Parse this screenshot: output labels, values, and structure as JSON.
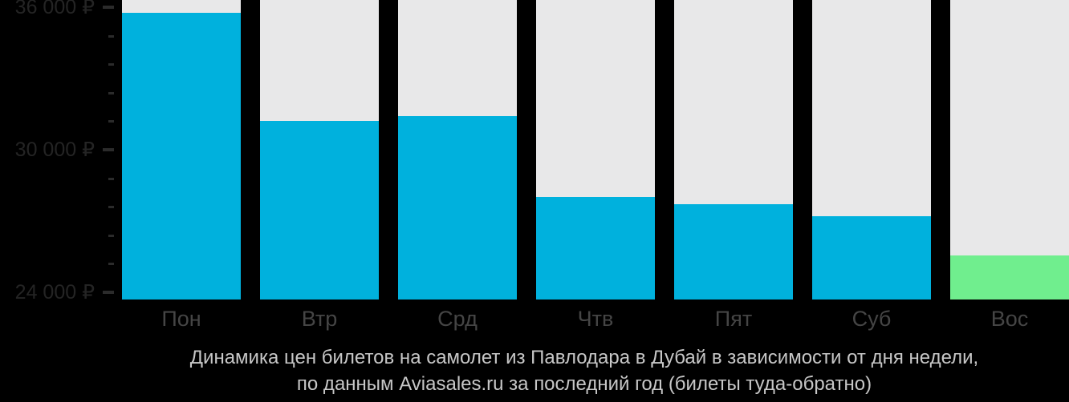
{
  "chart_data": {
    "type": "bar",
    "title_line1": "Динамика цен билетов на самолет из Павлодара в Дубай в зависимости от дня недели,",
    "title_line2": "по данным Aviasales.ru за последний год (билеты туда-обратно)",
    "categories": [
      "Пон",
      "Втр",
      "Срд",
      "Чтв",
      "Пят",
      "Суб",
      "Вос"
    ],
    "values": [
      35750,
      31200,
      31400,
      28000,
      27700,
      27200,
      25550
    ],
    "highlight_index": 6,
    "ylim": [
      23700,
      36300
    ],
    "y_major_ticks": [
      {
        "value": 24000,
        "label": "24 000 ₽"
      },
      {
        "value": 30000,
        "label": "30 000 ₽"
      },
      {
        "value": 36000,
        "label": "36 000 ₽"
      }
    ],
    "y_minor_ticks": [
      25200,
      26400,
      27600,
      28800,
      31200,
      32400,
      33600,
      34800
    ],
    "grid": false,
    "legend": "none",
    "colors": {
      "background": "#000000",
      "bar": "#00b1dd",
      "highlight": "#70ee8e",
      "column_bg": "#e8e8e9",
      "y_label": "#242424",
      "tick": "#2b2b2b",
      "x_label": "#454545",
      "title": "#c7c7c7"
    }
  }
}
